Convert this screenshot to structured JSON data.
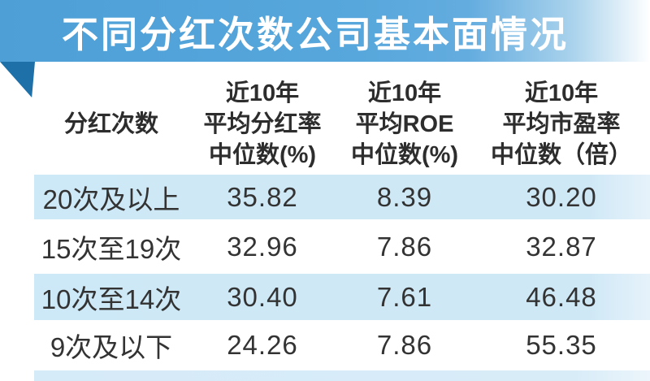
{
  "banner": {
    "title": "不同分红次数公司基本面情况"
  },
  "colors": {
    "banner_blue": "#57a7dc",
    "fold_blue": "#1e70a9",
    "row_blue": "#cfe8f6",
    "header_text": "#2d2d2d",
    "cell_text": "#333333",
    "title_text": "#ffffff"
  },
  "table": {
    "header": {
      "col1": [
        "分红次数"
      ],
      "col2": [
        "近10年",
        "平均分红率",
        "中位数(%)"
      ],
      "col3": [
        "近10年",
        "平均ROE",
        "中位数(%)"
      ],
      "col4": [
        "近10年",
        "平均市盈率",
        "中位数（倍）"
      ]
    },
    "rows": [
      {
        "label": "20次及以上",
        "dividend_rate": "35.82",
        "roe": "8.39",
        "pe": "30.20"
      },
      {
        "label": "15次至19次",
        "dividend_rate": "32.96",
        "roe": "7.86",
        "pe": "32.87"
      },
      {
        "label": "10次至14次",
        "dividend_rate": "30.40",
        "roe": "7.61",
        "pe": "46.48"
      },
      {
        "label": "9次及以下",
        "dividend_rate": "24.26",
        "roe": "7.86",
        "pe": "55.35"
      }
    ]
  },
  "chart_data": {
    "type": "table",
    "title": "不同分红次数公司基本面情况",
    "columns": [
      "分红次数",
      "近10年平均分红率中位数(%)",
      "近10年平均ROE中位数(%)",
      "近10年平均市盈率中位数（倍）"
    ],
    "rows": [
      [
        "20次及以上",
        35.82,
        8.39,
        30.2
      ],
      [
        "15次至19次",
        32.96,
        7.86,
        32.87
      ],
      [
        "10次至14次",
        30.4,
        7.61,
        46.48
      ],
      [
        "9次及以下",
        24.26,
        7.86,
        55.35
      ]
    ],
    "layout_hints": {
      "striped_rows": true,
      "stripe_color": "#cfe8f6",
      "header_bold": true
    }
  }
}
